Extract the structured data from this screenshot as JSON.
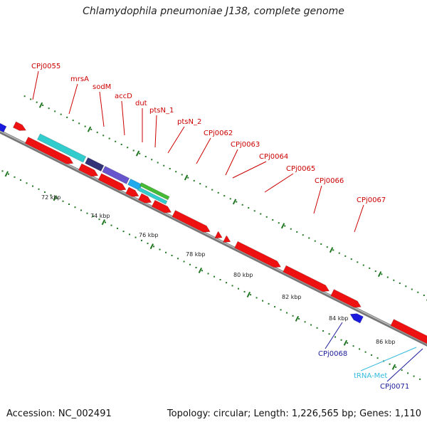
{
  "title": "Chlamydophila pneumoniae J138, complete genome",
  "footer": {
    "accession": "Accession: NC_002491",
    "summary": "Topology: circular; Length: 1,226,565 bp; Genes: 1,110"
  },
  "colors": {
    "gene_red": "#ee1111",
    "gene_blue": "#1a1add",
    "label_red": "#cc0000",
    "label_blue": "#1a1a99",
    "label_trna": "#33bbdd",
    "backbone": "#888888",
    "dots": "#227722",
    "cyan": "#33cccc",
    "navy": "#333377",
    "purple": "#6655cc",
    "sky": "#22aaee",
    "green": "#44bb33",
    "orange": "#ff9900"
  },
  "scale": {
    "unit": "kbp",
    "ticks": [
      "72 kbp",
      "74 kbp",
      "76 kbp",
      "78 kbp",
      "80 kbp",
      "82 kbp",
      "84 kbp",
      "86 kbp"
    ]
  },
  "genes": [
    {
      "id": "CPj0055",
      "color": "red"
    },
    {
      "id": "mrsA",
      "color": "cyan"
    },
    {
      "id": "sodM",
      "color": "navy"
    },
    {
      "id": "accD",
      "color": "purple"
    },
    {
      "id": "dut",
      "color": "sky"
    },
    {
      "id": "ptsN_1",
      "color": "green"
    },
    {
      "id": "ptsN_2",
      "color": "cyan"
    },
    {
      "id": "CPj0062",
      "color": "red"
    },
    {
      "id": "CPj0063",
      "color": "red"
    },
    {
      "id": "CPj0064",
      "color": "red"
    },
    {
      "id": "CPj0065",
      "color": "red"
    },
    {
      "id": "CPj0066",
      "color": "red"
    },
    {
      "id": "CPj0067",
      "color": "red"
    },
    {
      "id": "CPj0068",
      "color": "blue"
    },
    {
      "id": "tRNA-Met",
      "color": "trna"
    },
    {
      "id": "CPj0071",
      "color": "blue"
    }
  ]
}
